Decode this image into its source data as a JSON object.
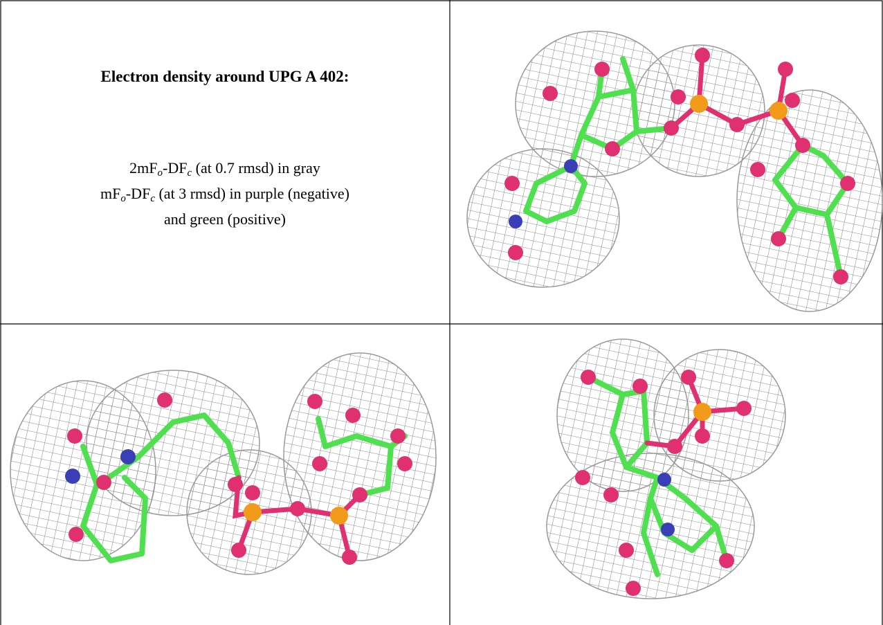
{
  "title": "Electron density around UPG A 402:",
  "legend": [
    [
      "2mF",
      "o",
      "-DF",
      "c",
      " (at 0.7 rmsd) in gray"
    ],
    [
      "mF",
      "o",
      "-DF",
      "c",
      " (at 3 rmsd) in purple (negative)"
    ],
    [
      "and green (positive)"
    ]
  ]
}
